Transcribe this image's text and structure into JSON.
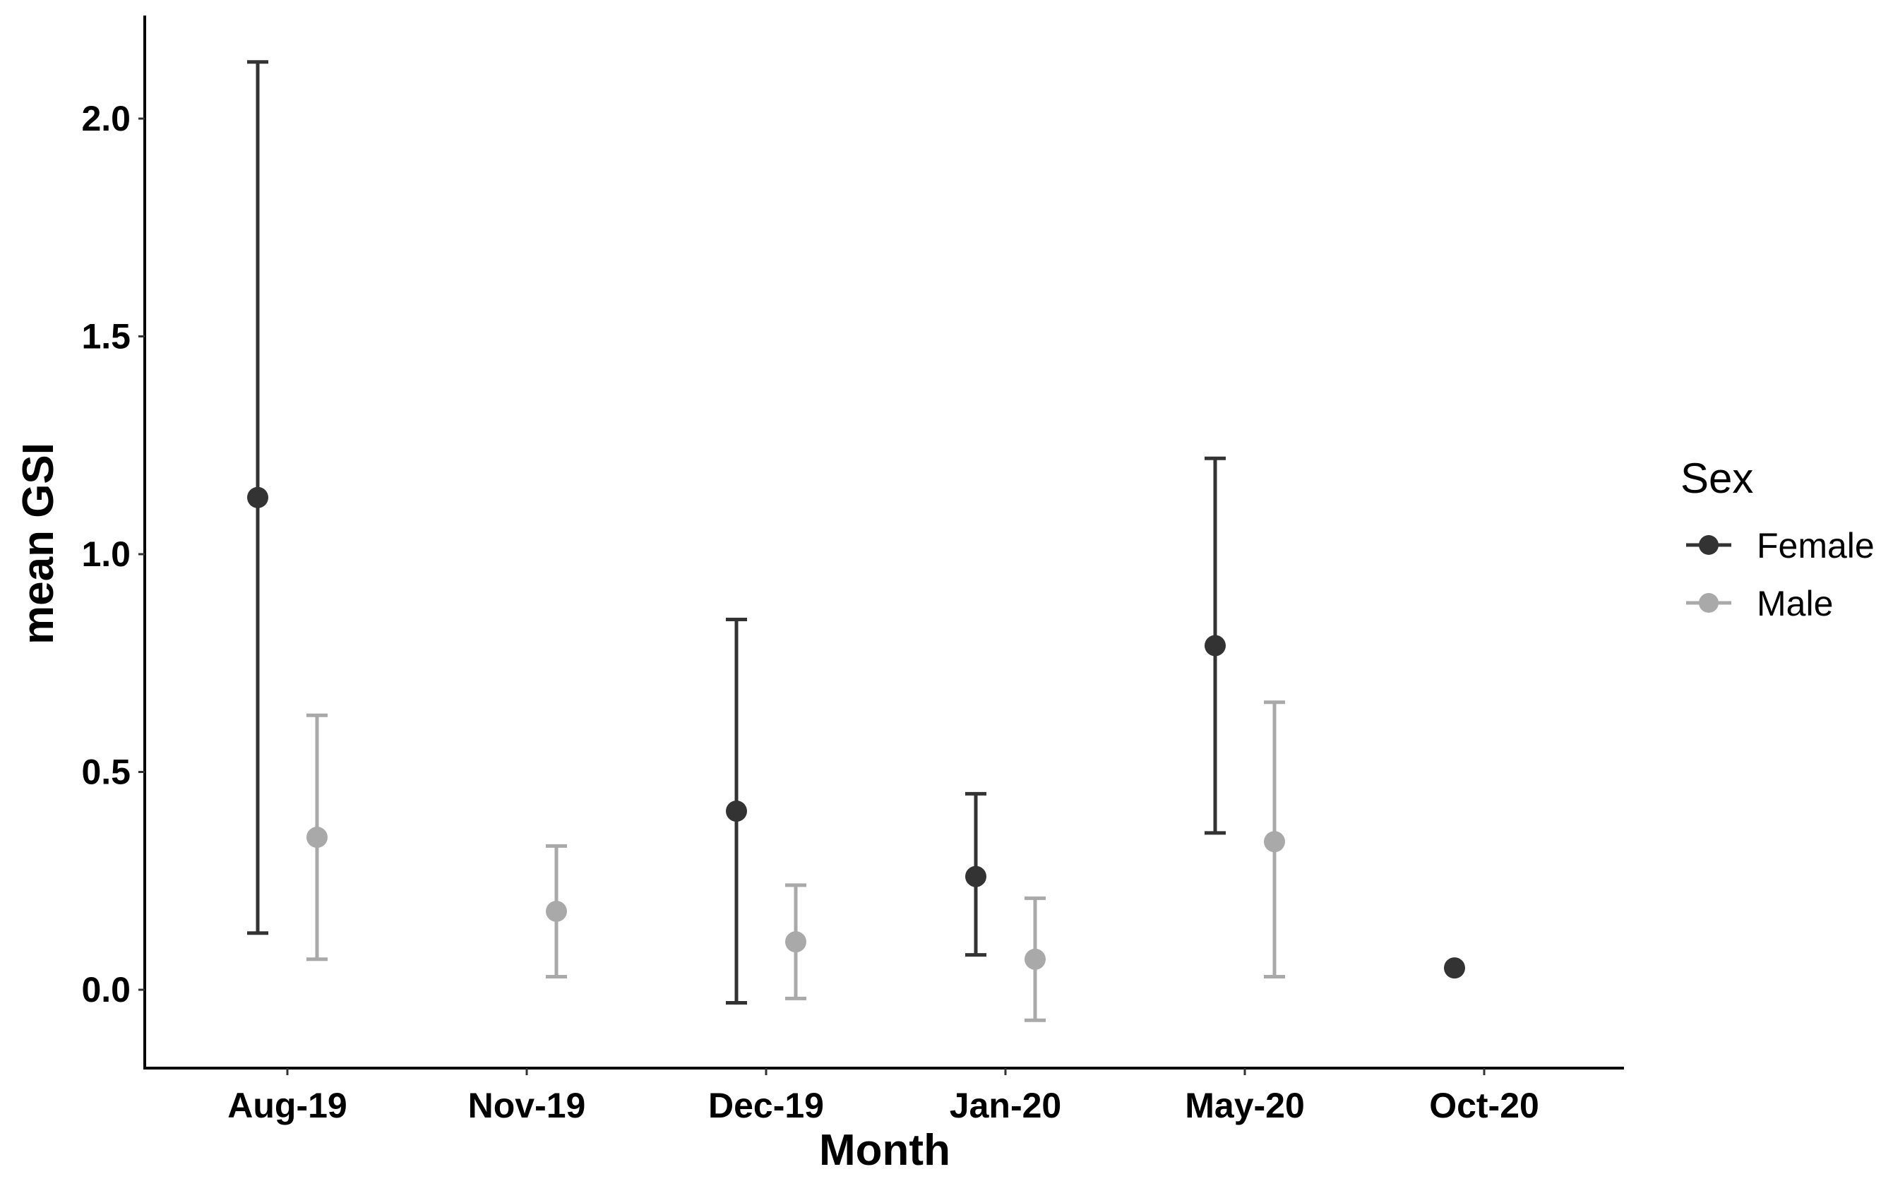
{
  "chart_data": {
    "type": "scatter",
    "title": "",
    "xlabel": "Month",
    "ylabel": "mean GSI",
    "categories": [
      "Aug-19",
      "Nov-19",
      "Dec-19",
      "Jan-20",
      "May-20",
      "Oct-20"
    ],
    "ylim": [
      -0.18,
      2.24
    ],
    "yticks": [
      0.0,
      0.5,
      1.0,
      1.5,
      2.0
    ],
    "ytick_labels": [
      "0.0",
      "0.5",
      "1.0",
      "1.5",
      "2.0"
    ],
    "grid": false,
    "legend": {
      "title": "Sex",
      "position": "right"
    },
    "series": [
      {
        "name": "Female",
        "color": "#333333",
        "points": [
          {
            "x": "Aug-19",
            "y": 1.13,
            "ymin": 0.13,
            "ymax": 2.13
          },
          {
            "x": "Dec-19",
            "y": 0.41,
            "ymin": -0.03,
            "ymax": 0.85
          },
          {
            "x": "Jan-20",
            "y": 0.26,
            "ymin": 0.08,
            "ymax": 0.45
          },
          {
            "x": "May-20",
            "y": 0.79,
            "ymin": 0.36,
            "ymax": 1.22
          },
          {
            "x": "Oct-20",
            "y": 0.05,
            "ymin": null,
            "ymax": null
          }
        ]
      },
      {
        "name": "Male",
        "color": "#a9a9a9",
        "points": [
          {
            "x": "Aug-19",
            "y": 0.35,
            "ymin": 0.07,
            "ymax": 0.63
          },
          {
            "x": "Nov-19",
            "y": 0.18,
            "ymin": 0.03,
            "ymax": 0.33
          },
          {
            "x": "Dec-19",
            "y": 0.11,
            "ymin": -0.02,
            "ymax": 0.24
          },
          {
            "x": "Jan-20",
            "y": 0.07,
            "ymin": -0.07,
            "ymax": 0.21
          },
          {
            "x": "May-20",
            "y": 0.34,
            "ymin": 0.03,
            "ymax": 0.66
          }
        ]
      }
    ]
  }
}
